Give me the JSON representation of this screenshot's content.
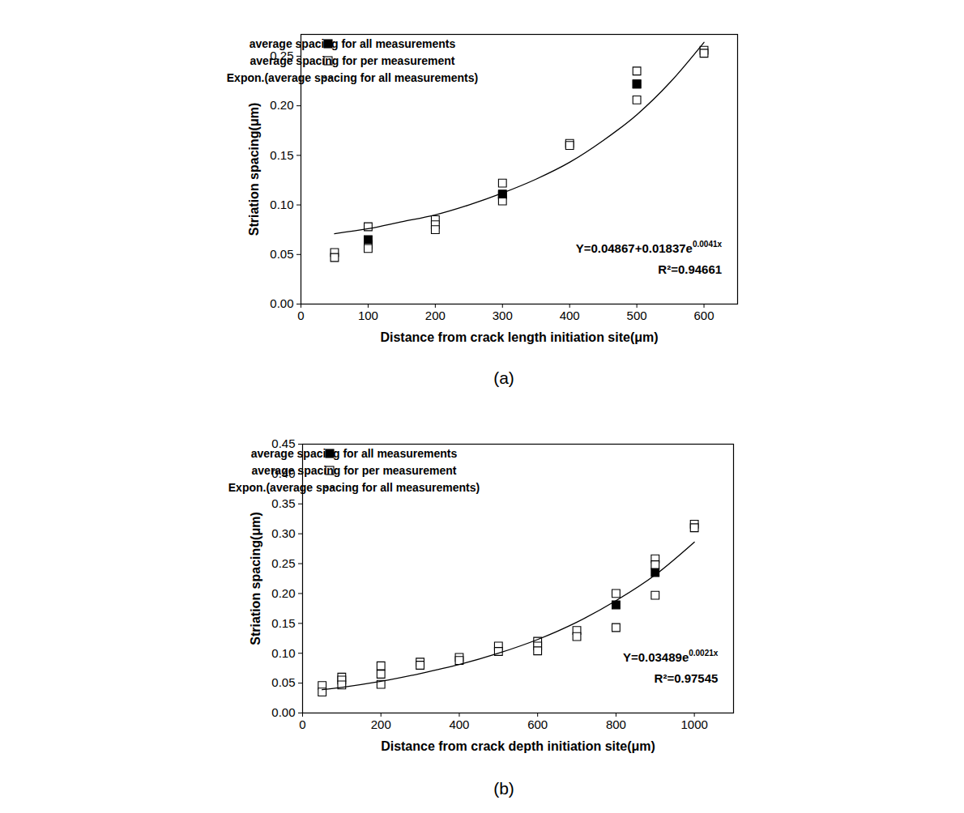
{
  "chart_data": [
    {
      "type": "scatter",
      "title": "(a)",
      "x_label": "Distance from crack length initiation site(μm)",
      "y_label": "Striation spacing(μm)",
      "xlim": [
        0,
        650
      ],
      "xticks": [
        0,
        100,
        200,
        300,
        400,
        500,
        600
      ],
      "ylim": [
        0,
        0.272
      ],
      "yticks": [
        {
          "value": 0,
          "label": "0.00"
        },
        {
          "value": 0.05,
          "label": "0.05"
        },
        {
          "value": 0.1,
          "label": "0.10"
        },
        {
          "value": 0.15,
          "label": "0.15"
        },
        {
          "value": 0.2,
          "label": "0.20"
        },
        {
          "value": 0.25,
          "label": "0.25"
        }
      ],
      "legend": "top-left",
      "grid": false,
      "series": [
        {
          "name": "average spacing for per measurement",
          "type": "scatter",
          "marker": "square_open",
          "color": "#000000",
          "x": [
            50,
            50,
            100,
            100,
            100,
            200,
            200,
            200,
            300,
            300,
            300,
            400,
            400,
            500,
            500,
            500,
            600,
            600
          ],
          "values": [
            0.052,
            0.047,
            0.078,
            0.06,
            0.056,
            0.085,
            0.08,
            0.075,
            0.122,
            0.11,
            0.104,
            0.162,
            0.16,
            0.235,
            0.222,
            0.206,
            0.256,
            0.253
          ]
        },
        {
          "name": "average spacing for all measurements",
          "type": "scatter",
          "marker": "square_filled",
          "color": "#000000",
          "x": [
            100,
            300,
            500
          ],
          "values": [
            0.065,
            0.111,
            0.222
          ]
        },
        {
          "name": "Expon.(average spacing for all measurements)",
          "type": "line",
          "line_style": "solid",
          "color": "#000000",
          "x": [
            50,
            100,
            150,
            200,
            250,
            300,
            350,
            400,
            450,
            500,
            550,
            600
          ],
          "values": [
            0.071,
            0.076,
            0.083,
            0.09,
            0.1,
            0.112,
            0.126,
            0.143,
            0.165,
            0.191,
            0.224,
            0.264
          ]
        }
      ],
      "legend_order": [
        "average spacing for all measurements",
        "average spacing for per measurement",
        "Expon.(average spacing for all measurements)"
      ],
      "annotations": [
        {
          "text": "Y=0.04867+0.01837e",
          "superscript": "0.0041x"
        },
        {
          "text": "R²=0.94661"
        }
      ]
    },
    {
      "type": "scatter",
      "title": "(b)",
      "x_label": "Distance from crack depth initiation site(μm)",
      "y_label": "Striation spacing(μm)",
      "xlim": [
        0,
        1100
      ],
      "xticks": [
        0,
        200,
        400,
        600,
        800,
        1000
      ],
      "ylim": [
        0,
        0.45
      ],
      "yticks": [
        {
          "value": 0,
          "label": "0.00"
        },
        {
          "value": 0.05,
          "label": "0.05"
        },
        {
          "value": 0.1,
          "label": "0.10"
        },
        {
          "value": 0.15,
          "label": "0.15"
        },
        {
          "value": 0.2,
          "label": "0.20"
        },
        {
          "value": 0.25,
          "label": "0.25"
        },
        {
          "value": 0.3,
          "label": "0.30"
        },
        {
          "value": 0.35,
          "label": "0.35"
        },
        {
          "value": 0.4,
          "label": "0.40"
        },
        {
          "value": 0.45,
          "label": "0.45"
        }
      ],
      "legend": "top-left",
      "grid": false,
      "series": [
        {
          "name": "average spacing for per measurement",
          "type": "scatter",
          "marker": "square_open",
          "color": "#000000",
          "x": [
            50,
            50,
            100,
            100,
            100,
            200,
            200,
            200,
            300,
            300,
            400,
            400,
            500,
            500,
            600,
            600,
            600,
            700,
            700,
            800,
            800,
            900,
            900,
            900,
            1000,
            1000
          ],
          "values": [
            0.046,
            0.035,
            0.06,
            0.055,
            0.047,
            0.079,
            0.065,
            0.048,
            0.085,
            0.08,
            0.093,
            0.088,
            0.112,
            0.103,
            0.12,
            0.112,
            0.104,
            0.138,
            0.128,
            0.2,
            0.143,
            0.258,
            0.248,
            0.197,
            0.316,
            0.31
          ]
        },
        {
          "name": "average spacing for all measurements",
          "type": "scatter",
          "marker": "square_filled",
          "color": "#000000",
          "x": [
            800,
            900
          ],
          "values": [
            0.181,
            0.235
          ]
        },
        {
          "name": "Expon.(average spacing for all measurements)",
          "type": "line",
          "line_style": "solid",
          "color": "#000000",
          "x": [
            50,
            100,
            200,
            300,
            400,
            500,
            600,
            700,
            800,
            900,
            1000
          ],
          "values": [
            0.039,
            0.043,
            0.053,
            0.066,
            0.081,
            0.1,
            0.123,
            0.152,
            0.188,
            0.231,
            0.286
          ]
        }
      ],
      "legend_order": [
        "average spacing for all measurements",
        "average spacing for per measurement",
        "Expon.(average spacing for all measurements)"
      ],
      "annotations": [
        {
          "text": "Y=0.03489e",
          "superscript": "0.0021x"
        },
        {
          "text": "R²=0.97545"
        }
      ]
    }
  ]
}
